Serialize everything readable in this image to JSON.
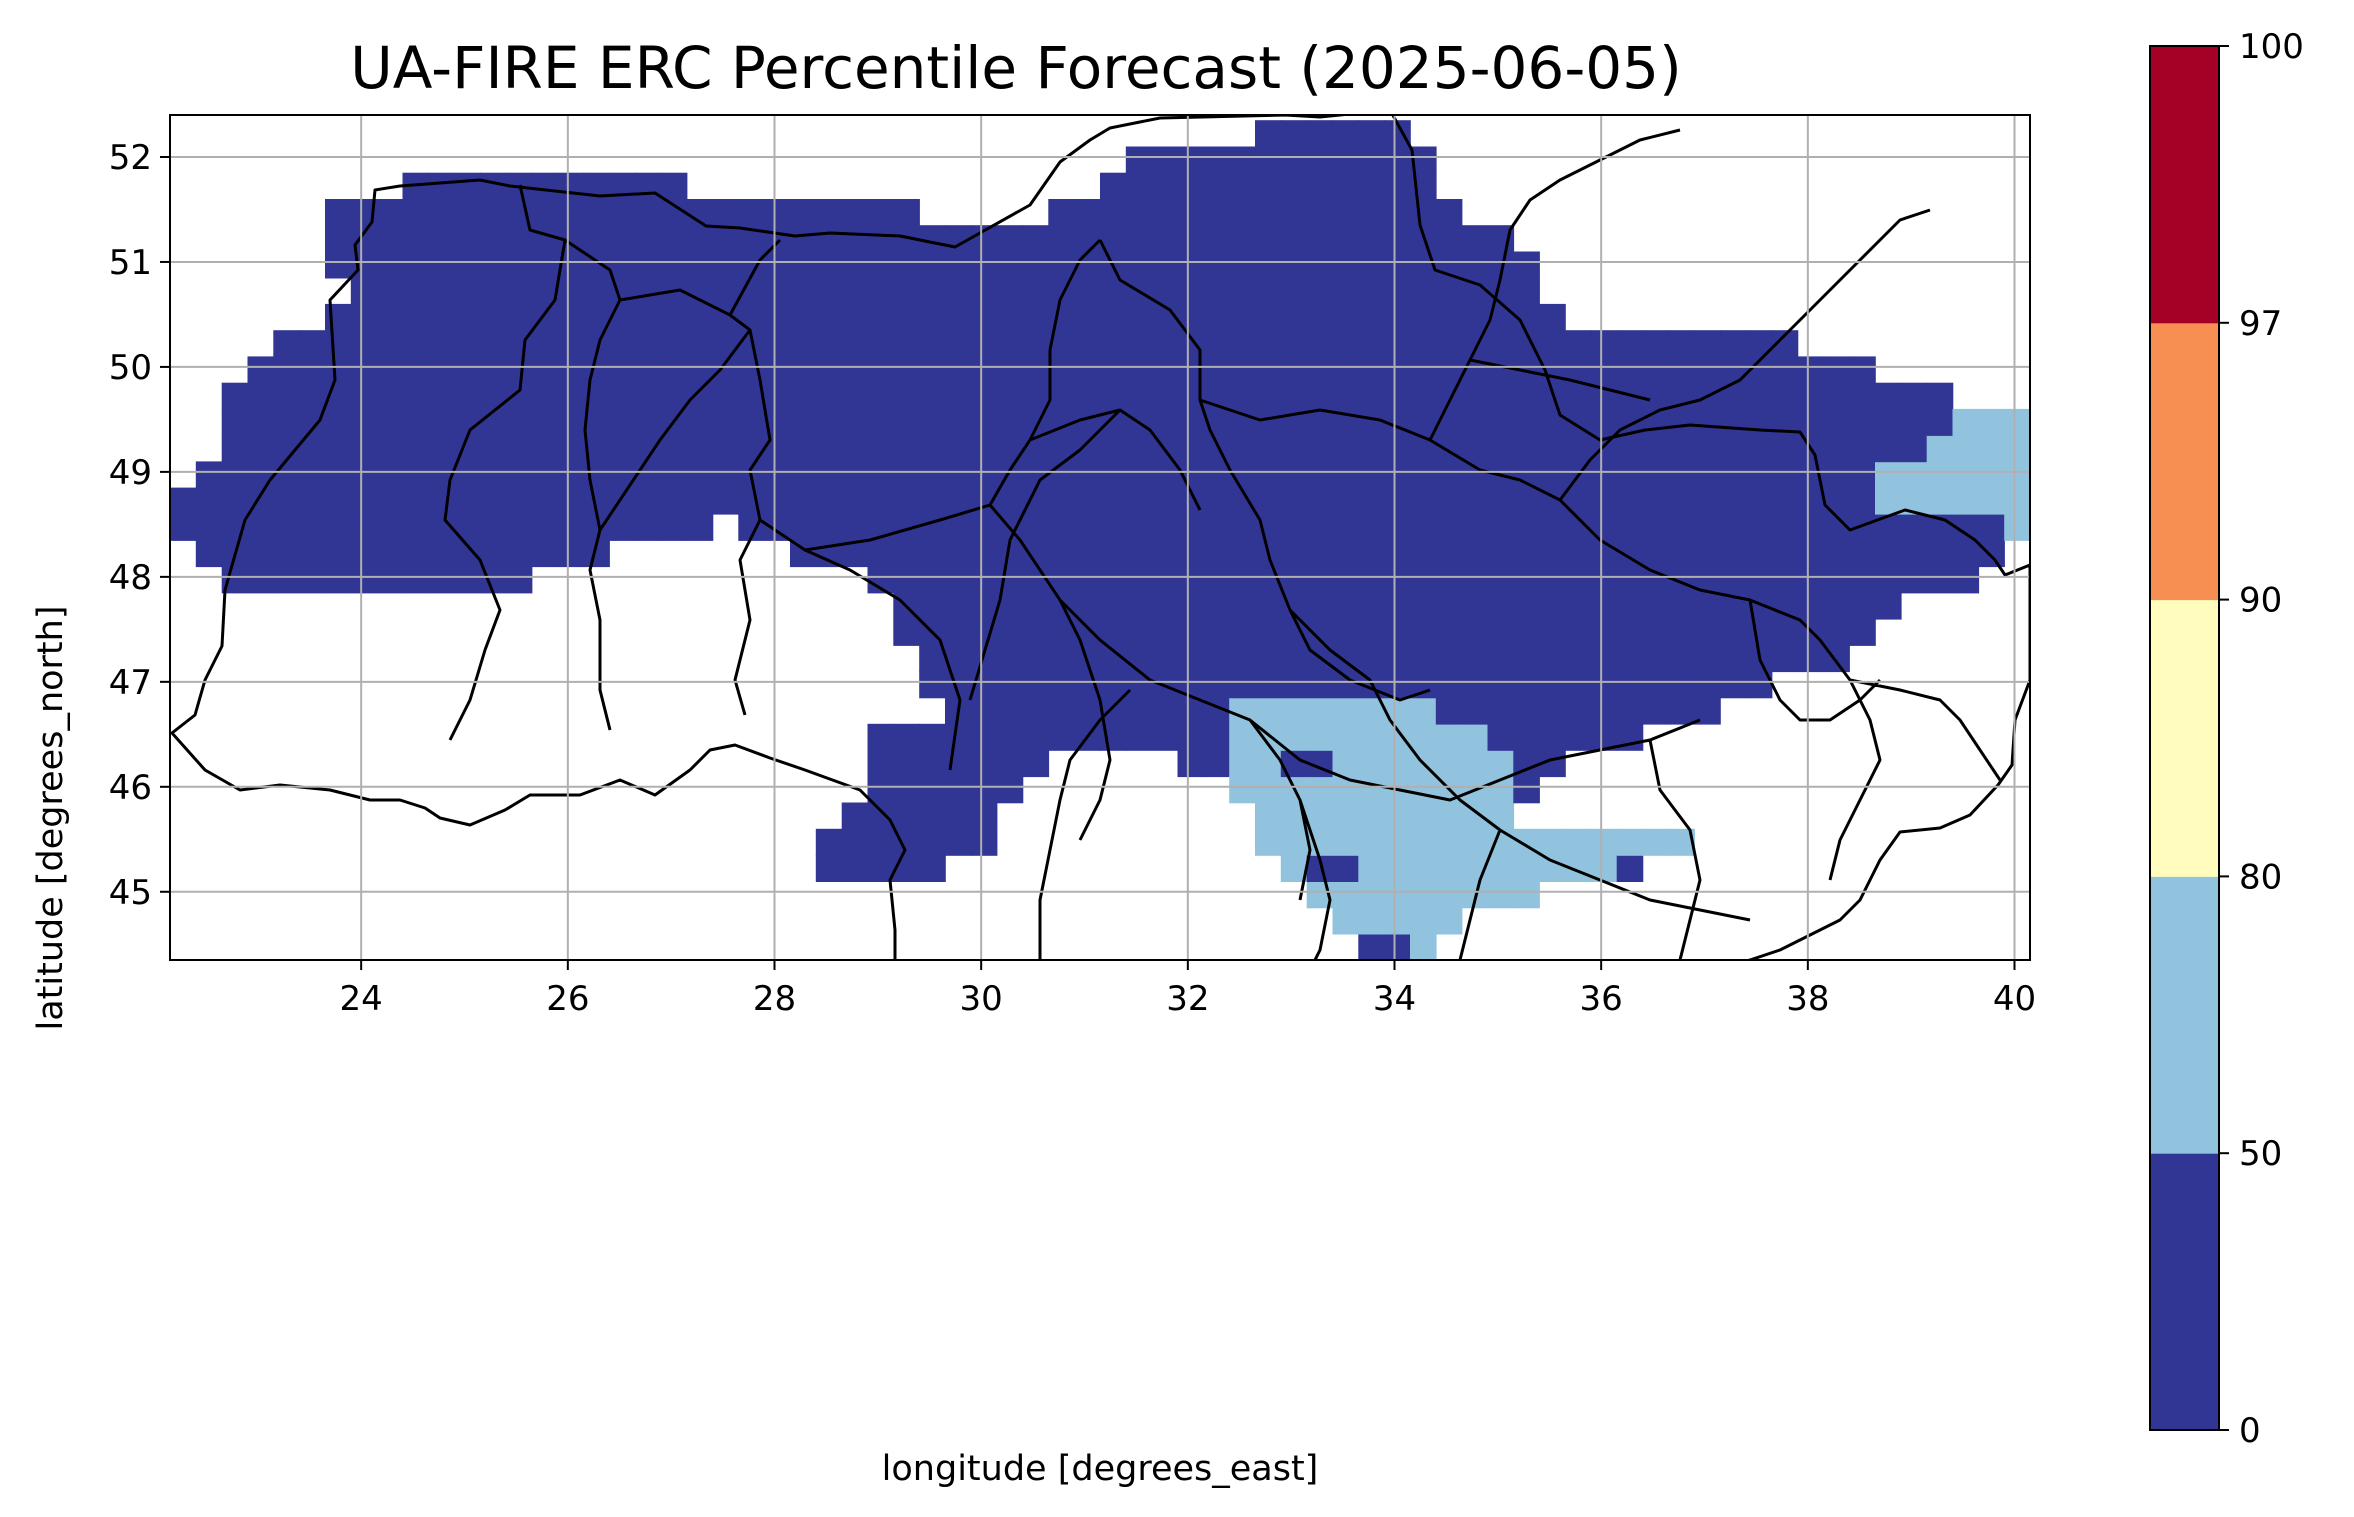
{
  "title": "UA-FIRE ERC Percentile Forecast (2025-06-05)",
  "map": {
    "xlabel": "longitude [degrees_east]",
    "ylabel": "latitude [degrees_north]",
    "xlim": [
      22.15,
      40.15
    ],
    "ylim": [
      44.35,
      52.4
    ],
    "xticks": [
      "24",
      "26",
      "28",
      "30",
      "32",
      "34",
      "36",
      "38",
      "40"
    ],
    "yticks": [
      "45",
      "46",
      "47",
      "48",
      "49",
      "50",
      "51",
      "52"
    ],
    "grid": true,
    "grid_cell_size_deg": 0.25
  },
  "colorbar": {
    "bounds": [
      "0",
      "50",
      "80",
      "90",
      "97",
      "100"
    ],
    "colors": [
      "#313695",
      "#91c3de",
      "#fffcbd",
      "#f88f52",
      "#a50026"
    ]
  },
  "map_data": {
    "type": "gridded-raster",
    "variable": "ERC percentile",
    "class_0_50_region": "most of Ukraine",
    "class_50_80_regions": [
      "Crimea and southern Kherson coast",
      "eastern Luhansk border area"
    ]
  }
}
